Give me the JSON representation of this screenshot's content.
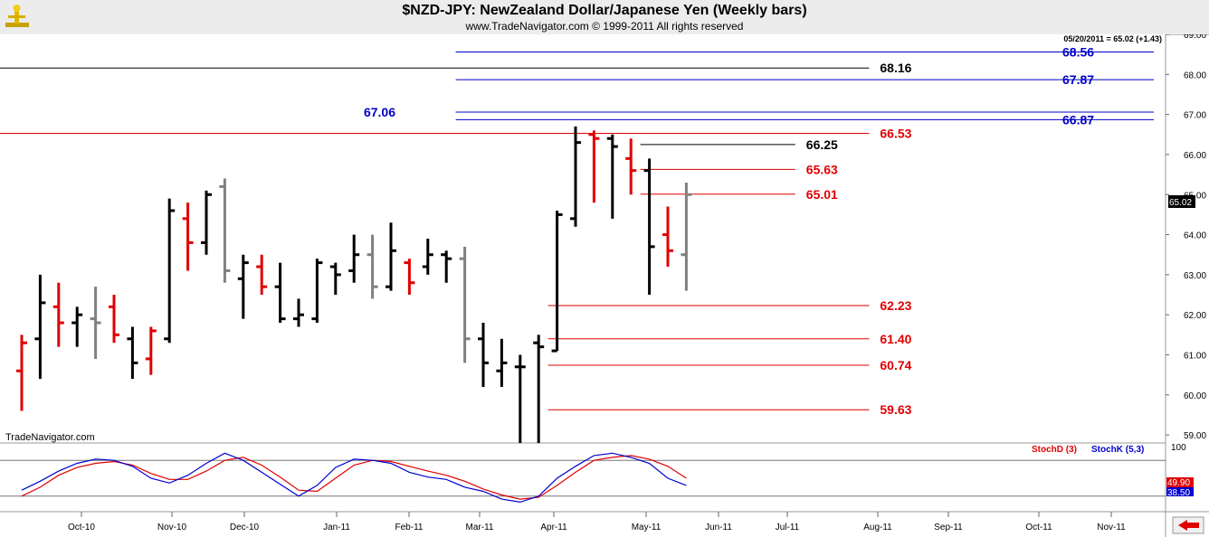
{
  "header": {
    "title": "$NZD-JPY:  NewZealand Dollar/Japanese Yen  (Weekly bars)",
    "copyright": "www.TradeNavigator.com © 1999-2011 All rights reserved"
  },
  "colors": {
    "up": "#000000",
    "down": "#e00000",
    "neutral": "#808080",
    "blue_level": "#0000c8",
    "red_level": "#e00000",
    "stoch_k": "#0000d0",
    "stoch_d": "#e00000"
  },
  "main": {
    "watermark": "TradeNavigator.com",
    "last_quote": "05/20/2011 = 65.02 (+1.43)",
    "current_price_label": "65.02"
  },
  "chart_data": {
    "type": "ohlc",
    "timeframe": "weekly",
    "y_axis": {
      "min": 58.8,
      "max": 69.0,
      "ticks": [
        "69.00",
        "68.00",
        "67.00",
        "66.00",
        "65.00",
        "64.00",
        "63.00",
        "62.00",
        "61.00",
        "60.00",
        "59.00"
      ]
    },
    "x_axis": {
      "ticks": [
        "Oct-10",
        "Nov-10",
        "Dec-10",
        "Jan-11",
        "Feb-11",
        "Mar-11",
        "Apr-11",
        "May-11",
        "Jun-11",
        "Jul-11",
        "Aug-11",
        "Sep-11",
        "Oct-11",
        "Nov-11"
      ]
    },
    "bars": [
      {
        "o": 60.6,
        "h": 61.5,
        "l": 59.6,
        "c": 61.3,
        "col": "down"
      },
      {
        "o": 61.4,
        "h": 63.0,
        "l": 60.4,
        "c": 62.3,
        "col": "up"
      },
      {
        "o": 62.2,
        "h": 62.8,
        "l": 61.2,
        "c": 61.8,
        "col": "down"
      },
      {
        "o": 61.8,
        "h": 62.2,
        "l": 61.2,
        "c": 62.0,
        "col": "up"
      },
      {
        "o": 61.9,
        "h": 62.7,
        "l": 60.9,
        "c": 61.8,
        "col": "neutral"
      },
      {
        "o": 62.2,
        "h": 62.5,
        "l": 61.3,
        "c": 61.5,
        "col": "down"
      },
      {
        "o": 61.4,
        "h": 61.7,
        "l": 60.4,
        "c": 60.8,
        "col": "up"
      },
      {
        "o": 60.9,
        "h": 61.7,
        "l": 60.5,
        "c": 61.6,
        "col": "down"
      },
      {
        "o": 61.4,
        "h": 64.9,
        "l": 61.3,
        "c": 64.6,
        "col": "up"
      },
      {
        "o": 64.4,
        "h": 64.8,
        "l": 63.1,
        "c": 63.8,
        "col": "down"
      },
      {
        "o": 63.8,
        "h": 65.1,
        "l": 63.5,
        "c": 65.0,
        "col": "up"
      },
      {
        "o": 65.2,
        "h": 65.4,
        "l": 62.8,
        "c": 63.1,
        "col": "neutral"
      },
      {
        "o": 62.9,
        "h": 63.5,
        "l": 61.9,
        "c": 63.3,
        "col": "up"
      },
      {
        "o": 63.2,
        "h": 63.5,
        "l": 62.5,
        "c": 62.7,
        "col": "down"
      },
      {
        "o": 62.7,
        "h": 63.3,
        "l": 61.8,
        "c": 61.9,
        "col": "up"
      },
      {
        "o": 61.9,
        "h": 62.4,
        "l": 61.7,
        "c": 62.0,
        "col": "up"
      },
      {
        "o": 61.9,
        "h": 63.4,
        "l": 61.8,
        "c": 63.3,
        "col": "up"
      },
      {
        "o": 63.2,
        "h": 63.3,
        "l": 62.5,
        "c": 63.0,
        "col": "up"
      },
      {
        "o": 63.1,
        "h": 64.0,
        "l": 62.8,
        "c": 63.5,
        "col": "up"
      },
      {
        "o": 63.5,
        "h": 64.0,
        "l": 62.4,
        "c": 62.7,
        "col": "neutral"
      },
      {
        "o": 62.7,
        "h": 64.3,
        "l": 62.6,
        "c": 63.6,
        "col": "up"
      },
      {
        "o": 63.3,
        "h": 63.4,
        "l": 62.5,
        "c": 62.8,
        "col": "down"
      },
      {
        "o": 63.2,
        "h": 63.9,
        "l": 63.0,
        "c": 63.5,
        "col": "up"
      },
      {
        "o": 63.5,
        "h": 63.6,
        "l": 62.8,
        "c": 63.4,
        "col": "up"
      },
      {
        "o": 63.4,
        "h": 63.7,
        "l": 60.8,
        "c": 61.4,
        "col": "neutral"
      },
      {
        "o": 61.4,
        "h": 61.8,
        "l": 60.2,
        "c": 60.8,
        "col": "up"
      },
      {
        "o": 60.6,
        "h": 61.4,
        "l": 60.2,
        "c": 60.8,
        "col": "up"
      },
      {
        "o": 60.7,
        "h": 61.0,
        "l": 58.8,
        "c": 60.7,
        "col": "up"
      },
      {
        "o": 61.3,
        "h": 61.5,
        "l": 58.8,
        "c": 61.2,
        "col": "up"
      },
      {
        "o": 61.1,
        "h": 64.6,
        "l": 61.1,
        "c": 64.5,
        "col": "up"
      },
      {
        "o": 64.4,
        "h": 66.7,
        "l": 64.2,
        "c": 66.3,
        "col": "up"
      },
      {
        "o": 66.5,
        "h": 66.6,
        "l": 64.8,
        "c": 66.4,
        "col": "down"
      },
      {
        "o": 66.4,
        "h": 66.5,
        "l": 64.4,
        "c": 66.2,
        "col": "up"
      },
      {
        "o": 65.9,
        "h": 66.4,
        "l": 65.0,
        "c": 65.6,
        "col": "down"
      },
      {
        "o": 65.6,
        "h": 65.9,
        "l": 62.5,
        "c": 63.7,
        "col": "up"
      },
      {
        "o": 64.0,
        "h": 64.7,
        "l": 63.2,
        "c": 63.6,
        "col": "down"
      },
      {
        "o": 63.5,
        "h": 65.3,
        "l": 62.6,
        "c": 65.0,
        "col": "neutral"
      }
    ],
    "levels": [
      {
        "value": 68.56,
        "label": "68.56",
        "color": "blue",
        "from_bar": 24,
        "to": "right",
        "label_pos": "right"
      },
      {
        "value": 67.87,
        "label": "67.87",
        "color": "blue",
        "from_bar": 24,
        "to": "right",
        "label_pos": "right"
      },
      {
        "value": 66.87,
        "label": "66.87",
        "color": "blue",
        "from_bar": 24,
        "to": "right",
        "label_pos": "right"
      },
      {
        "value": 67.06,
        "label": "67.06",
        "color": "blue",
        "from_bar": 24,
        "to": "right",
        "label_pos": "left"
      },
      {
        "value": 68.16,
        "label": "68.16",
        "color": "black",
        "from_bar": -1,
        "to_bar": 46,
        "label_pos": "end"
      },
      {
        "value": 66.53,
        "label": "66.53",
        "color": "red",
        "from_bar": -1,
        "to_bar": 46,
        "label_pos": "end"
      },
      {
        "value": 66.25,
        "label": "66.25",
        "color": "black",
        "from_bar": 34,
        "to_bar": 42,
        "label_pos": "end"
      },
      {
        "value": 65.63,
        "label": "65.63",
        "color": "red",
        "from_bar": 34,
        "to_bar": 42,
        "label_pos": "end"
      },
      {
        "value": 65.01,
        "label": "65.01",
        "color": "red",
        "from_bar": 34,
        "to_bar": 42,
        "label_pos": "end"
      },
      {
        "value": 62.23,
        "label": "62.23",
        "color": "red",
        "from_bar": 29,
        "to_bar": 46,
        "label_pos": "end"
      },
      {
        "value": 61.4,
        "label": "61.40",
        "color": "red",
        "from_bar": 29,
        "to_bar": 46,
        "label_pos": "end"
      },
      {
        "value": 60.74,
        "label": "60.74",
        "color": "red",
        "from_bar": 29,
        "to_bar": 46,
        "label_pos": "end"
      },
      {
        "value": 59.63,
        "label": "59.63",
        "color": "red",
        "from_bar": 29,
        "to_bar": 46,
        "label_pos": "end"
      }
    ],
    "stochastic": {
      "legend": [
        "StochD (3)",
        "StochK (5,3)"
      ],
      "top_label": "100",
      "d_value_label": "49.90",
      "k_value_label": "38.50",
      "overbought": 80,
      "oversold": 20,
      "k": [
        30,
        45,
        62,
        75,
        82,
        80,
        70,
        50,
        42,
        55,
        75,
        92,
        80,
        60,
        40,
        20,
        38,
        68,
        82,
        80,
        75,
        60,
        52,
        48,
        35,
        28,
        15,
        10,
        20,
        50,
        70,
        88,
        92,
        85,
        75,
        50,
        38
      ],
      "d": [
        20,
        35,
        55,
        68,
        75,
        78,
        72,
        58,
        48,
        48,
        62,
        80,
        85,
        72,
        52,
        30,
        28,
        50,
        72,
        80,
        78,
        70,
        62,
        55,
        45,
        32,
        22,
        15,
        18,
        38,
        60,
        80,
        85,
        88,
        82,
        70,
        50
      ]
    }
  }
}
